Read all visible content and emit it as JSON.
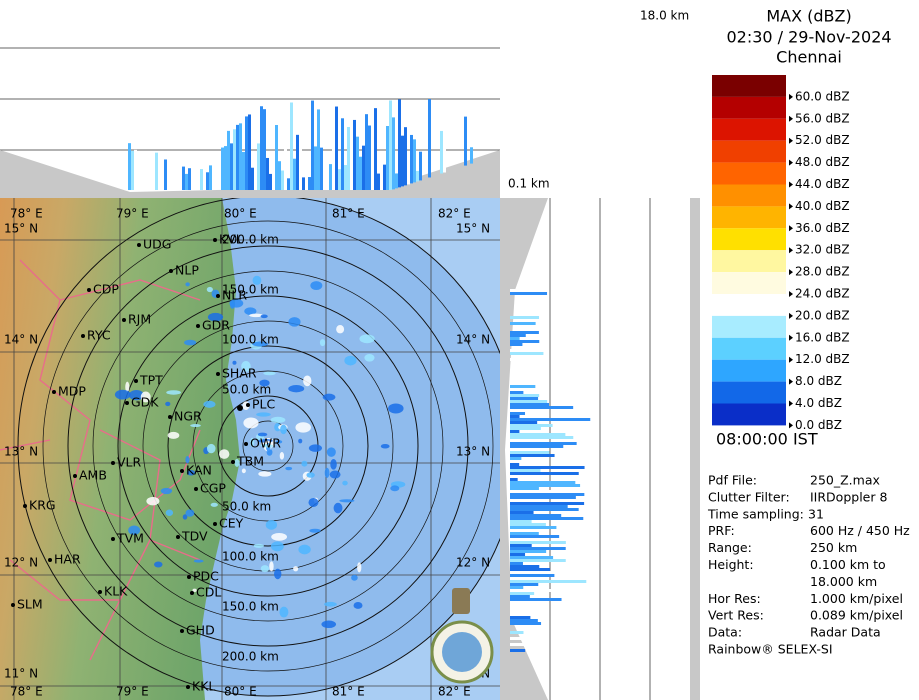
{
  "header": {
    "top_height": "18.0 km",
    "bottom_height": "0.1 km",
    "title": "MAX (dBZ)",
    "datetime": "02:30 / 29-Nov-2024",
    "location": "Chennai"
  },
  "colorbar": {
    "colors": [
      "#7a0000",
      "#b40000",
      "#dc1400",
      "#f04000",
      "#ff6400",
      "#ff9000",
      "#ffb400",
      "#ffe000",
      "#fff7a0",
      "#fffbe0",
      "#ffffff",
      "#a8ecff",
      "#5cd0ff",
      "#2ea6ff",
      "#1268e8",
      "#0a2ec8"
    ],
    "labels": [
      "60.0 dBZ",
      "56.0 dBZ",
      "52.0 dBZ",
      "48.0 dBZ",
      "44.0 dBZ",
      "40.0 dBZ",
      "36.0 dBZ",
      "32.0 dBZ",
      "28.0 dBZ",
      "24.0 dBZ",
      "20.0 dBZ",
      "16.0 dBZ",
      "12.0 dBZ",
      "8.0 dBZ",
      "4.0 dBZ",
      "0.0 dBZ"
    ]
  },
  "time": "08:00:00 IST",
  "info": [
    {
      "label": "Pdf File:",
      "value": "250_Z.max"
    },
    {
      "label": "Clutter Filter:",
      "value": "IIRDoppler 8"
    },
    {
      "label": "Time sampling:",
      "value": "31"
    },
    {
      "label": "PRF:",
      "value": "600 Hz / 450 Hz"
    },
    {
      "label": "Range:",
      "value": "250 km"
    },
    {
      "label": "Height:",
      "value": "0.100 km to"
    },
    {
      "label": "",
      "value": "18.000 km"
    },
    {
      "label": "Hor Res:",
      "value": "1.000 km/pixel"
    },
    {
      "label": "Vert Res:",
      "value": "0.089 km/pixel"
    },
    {
      "label": "Data:",
      "value": "Radar Data"
    }
  ],
  "footer": "Rainbow® SELEX-SI",
  "map": {
    "lon_labels": [
      "78° E",
      "79° E",
      "80° E",
      "81° E",
      "82° E"
    ],
    "lat_labels": [
      "15° N",
      "14° N",
      "13° N",
      "12° N",
      "11° N"
    ],
    "range_labels": [
      "50.0 km",
      "100.0 km",
      "150.0 km",
      "200.0 km"
    ],
    "towns": [
      "UDG",
      "KVL",
      "NLP",
      "CDP",
      "NLR",
      "RJM",
      "RYC",
      "GDR",
      "TPT",
      "MDP",
      "SHAR",
      "GDK",
      "PLC",
      "NGR",
      "OWR",
      "KAN",
      "VLR",
      "TBM",
      "AMB",
      "CGP",
      "KRG",
      "CEY",
      "TVM",
      "TDV",
      "HAR",
      "PDC",
      "CDL",
      "KLK",
      "SLM",
      "GHD",
      "KKL"
    ]
  }
}
